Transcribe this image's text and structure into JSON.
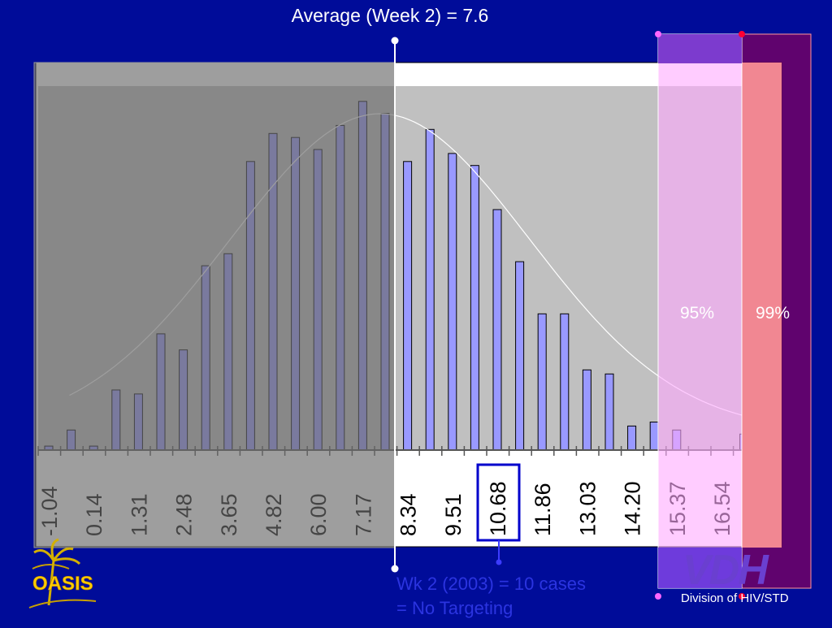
{
  "header": {
    "average_label": "Average (Week 2) = 7.6"
  },
  "thresholds": {
    "p95_label": "95%",
    "p99_label": "99%"
  },
  "annotation": {
    "line1": "Wk 2 (2003) = 10 cases",
    "line2": "= No Targeting",
    "highlighted_tick": "10.68"
  },
  "footer": {
    "division": "Division of HIV/STD",
    "vdh_logo": "VDH",
    "oasis_logo": "OASIS"
  },
  "colors": {
    "background": "#000c99",
    "bar_fill": "#9999ff",
    "plot_bg": "#c0c0c0",
    "shade_left": "#808080",
    "band_95": "#ffaaff",
    "band_99": "#ff9999",
    "highlight_box": "#0000cc"
  },
  "chart_data": {
    "type": "bar",
    "title": "",
    "xlabel": "",
    "ylabel": "",
    "tick_labels": [
      "-1.04",
      "0.14",
      "1.31",
      "2.48",
      "3.65",
      "4.82",
      "6.00",
      "7.17",
      "8.34",
      "9.51",
      "10.68",
      "11.86",
      "13.03",
      "14.20",
      "15.37",
      "16.54"
    ],
    "values": [
      1,
      5,
      1,
      15,
      14,
      29,
      25,
      46,
      49,
      72,
      79,
      78,
      75,
      81,
      87,
      84,
      72,
      80,
      74,
      71,
      60,
      47,
      34,
      34,
      20,
      19,
      6,
      7,
      5,
      0,
      0,
      4
    ],
    "ylim": [
      0,
      90
    ],
    "fitted_curve": "normal distribution, mean 7.6",
    "grid": false
  }
}
